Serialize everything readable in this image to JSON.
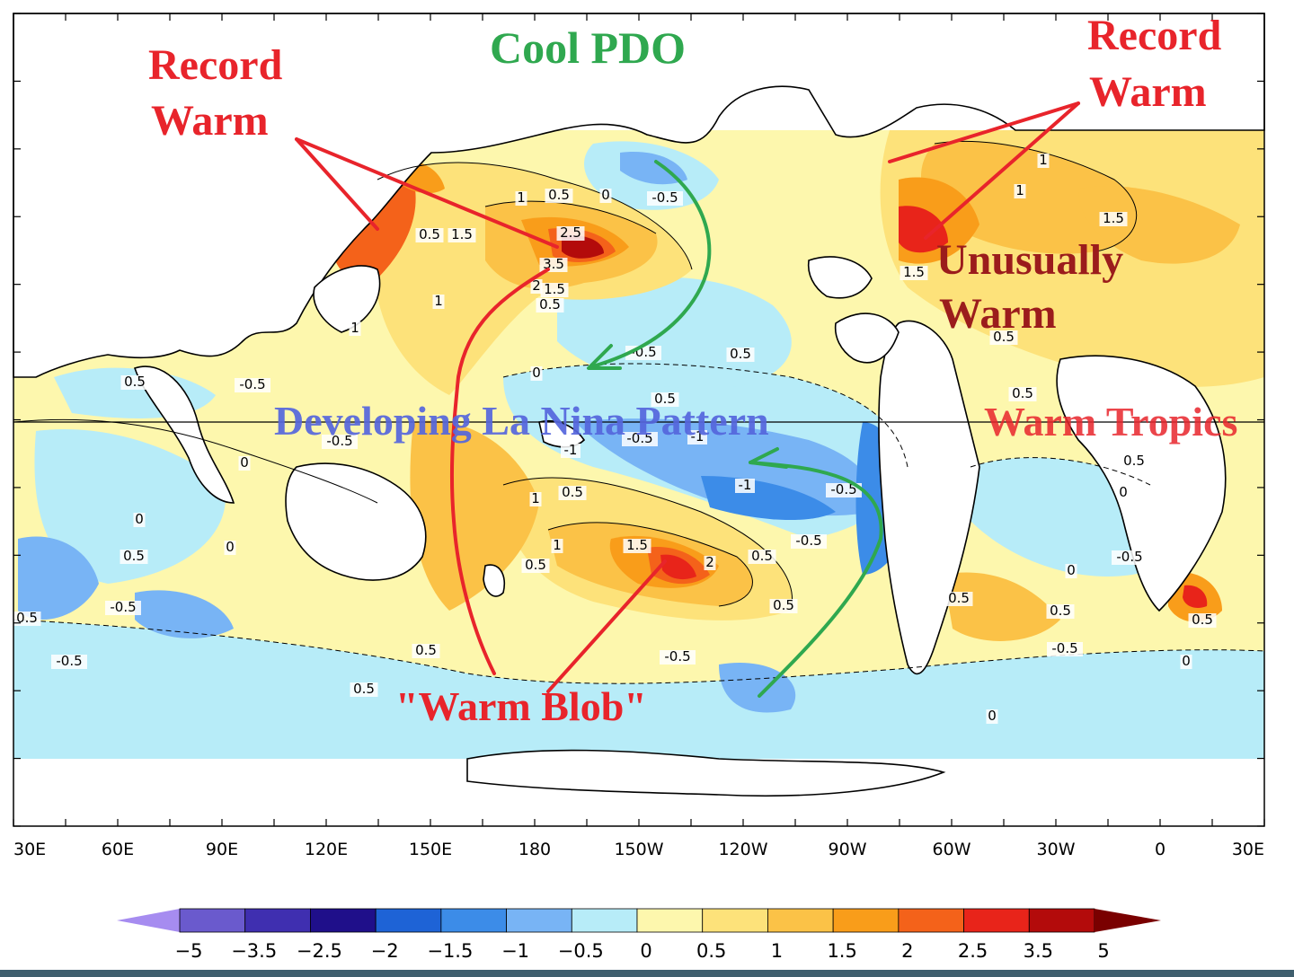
{
  "map": {
    "annotations": {
      "cool_pdo": "Cool PDO",
      "record_warm_left": [
        "Record",
        "Warm"
      ],
      "record_warm_right": [
        "Record",
        "Warm"
      ],
      "unusually_warm": [
        "Unusually",
        "Warm"
      ],
      "warm_tropics": "Warm Tropics",
      "la_nina": "Developing La Nina Pattern",
      "warm_blob": "\"Warm Blob\""
    },
    "longitude_ticks": [
      "30E",
      "60E",
      "90E",
      "120E",
      "150E",
      "180",
      "150W",
      "120W",
      "90W",
      "60W",
      "30W",
      "0",
      "30E"
    ],
    "contour_labels": [
      "1",
      "0.5",
      "0",
      "-0.5",
      "0.5",
      "1.5",
      "2.5",
      "3.5",
      "2",
      "1.5",
      "0.5",
      "1",
      "1",
      "-0.5",
      "0.5",
      "0",
      "0.5",
      "-0.5",
      "0.5",
      "-0.5",
      "-1",
      "-1",
      "-0.5",
      "0.5",
      "1",
      "1.5",
      "2",
      "1",
      "0.5",
      "-1",
      "-0.5",
      "-0.5",
      "0.5",
      "0",
      "0.5",
      "-0.5",
      "-0.5",
      "0.5",
      "0",
      "0.5",
      "0",
      "-0.5",
      "0.5",
      "1.5",
      "1",
      "1",
      "1.5",
      "0.5",
      "0.5",
      "0.5",
      "0",
      "0.5",
      "0",
      "-0.5",
      "0.5",
      "0.5",
      "-0.5",
      "0.5",
      "0",
      "0"
    ],
    "colors": {
      "annotation_red": "#e8242b",
      "annotation_dark_red": "#9b1c1c",
      "annotation_green": "#2fa84f",
      "annotation_blue": "#5566dd"
    }
  },
  "colorbar": {
    "labels": [
      "-5",
      "-3.5",
      "-2.5",
      "-2",
      "-1.5",
      "-1",
      "-0.5",
      "0",
      "0.5",
      "1",
      "1.5",
      "2",
      "2.5",
      "3.5",
      "5"
    ],
    "colors": [
      "#6a5acd",
      "#3f2fb0",
      "#1f0f8a",
      "#1e63d6",
      "#3c8ce8",
      "#78b4f5",
      "#b7ecf8",
      "#fdf7ad",
      "#fde27a",
      "#fbc247",
      "#f99d1a",
      "#f4621a",
      "#e8241a",
      "#b30b0b"
    ],
    "low_color": "#a68cf0",
    "high_color": "#7a0000"
  }
}
